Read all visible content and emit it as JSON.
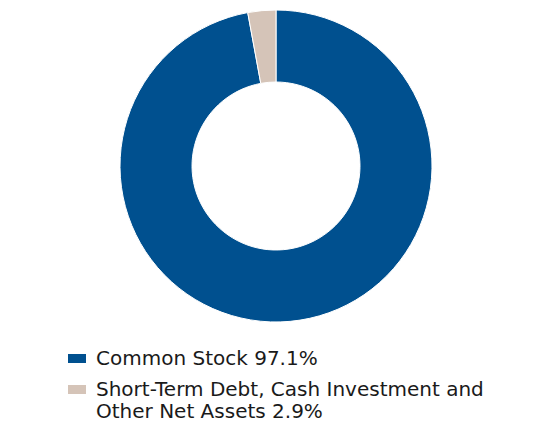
{
  "chart_data": {
    "type": "donut",
    "categories": [
      "Common Stock",
      "Short-Term Debt, Cash Investment and Other Net Assets"
    ],
    "values": [
      97.1,
      2.9
    ],
    "value_labels": [
      "97.1%",
      "2.9%"
    ],
    "colors": [
      "#00508f",
      "#d5c4b8"
    ],
    "legend": "bottom"
  }
}
